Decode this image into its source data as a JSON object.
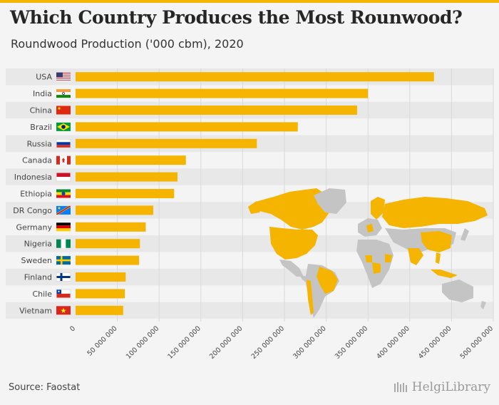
{
  "header": {
    "title": "Which Country Produces the Most Rounwood?",
    "subtitle": "Roundwood Production ('000 cbm), 2020"
  },
  "footer": {
    "source": "Source: Faostat",
    "brand": "HelgiLibrary"
  },
  "colors": {
    "bar": "#f5b400",
    "accent": "#f5b400",
    "grid": "#d9d9d9",
    "map_highlight": "#f5b400",
    "map_other": "#c4c4c4"
  },
  "chart_data": {
    "type": "bar",
    "orientation": "horizontal",
    "categories": [
      "USA",
      "India",
      "China",
      "Brazil",
      "Russia",
      "Canada",
      "Indonesia",
      "Ethiopia",
      "DR Congo",
      "Germany",
      "Nigeria",
      "Sweden",
      "Finland",
      "Chile",
      "Vietnam"
    ],
    "flags": [
      "us-flag",
      "india-flag",
      "china-flag",
      "brazil-flag",
      "russia-flag",
      "canada-flag",
      "indonesia-flag",
      "ethiopia-flag",
      "dr-congo-flag",
      "germany-flag",
      "nigeria-flag",
      "sweden-flag",
      "finland-flag",
      "chile-flag",
      "vietnam-flag"
    ],
    "values": [
      429000,
      350000,
      337000,
      266000,
      217000,
      132000,
      122000,
      118000,
      93000,
      84000,
      77000,
      76000,
      60000,
      59000,
      57000
    ],
    "xlim": [
      0,
      500000
    ],
    "xticks": [
      0,
      50000,
      100000,
      150000,
      200000,
      250000,
      300000,
      350000,
      400000,
      450000,
      500000
    ],
    "xtick_labels": [
      "0",
      "50 000 000",
      "100 000 000",
      "150 000 000",
      "200 000 000",
      "250 000 000",
      "300 000 000",
      "350 000 000",
      "400 000 000",
      "450 000 000",
      "500 000 000"
    ],
    "grid": true,
    "xlabel": "",
    "ylabel": ""
  }
}
